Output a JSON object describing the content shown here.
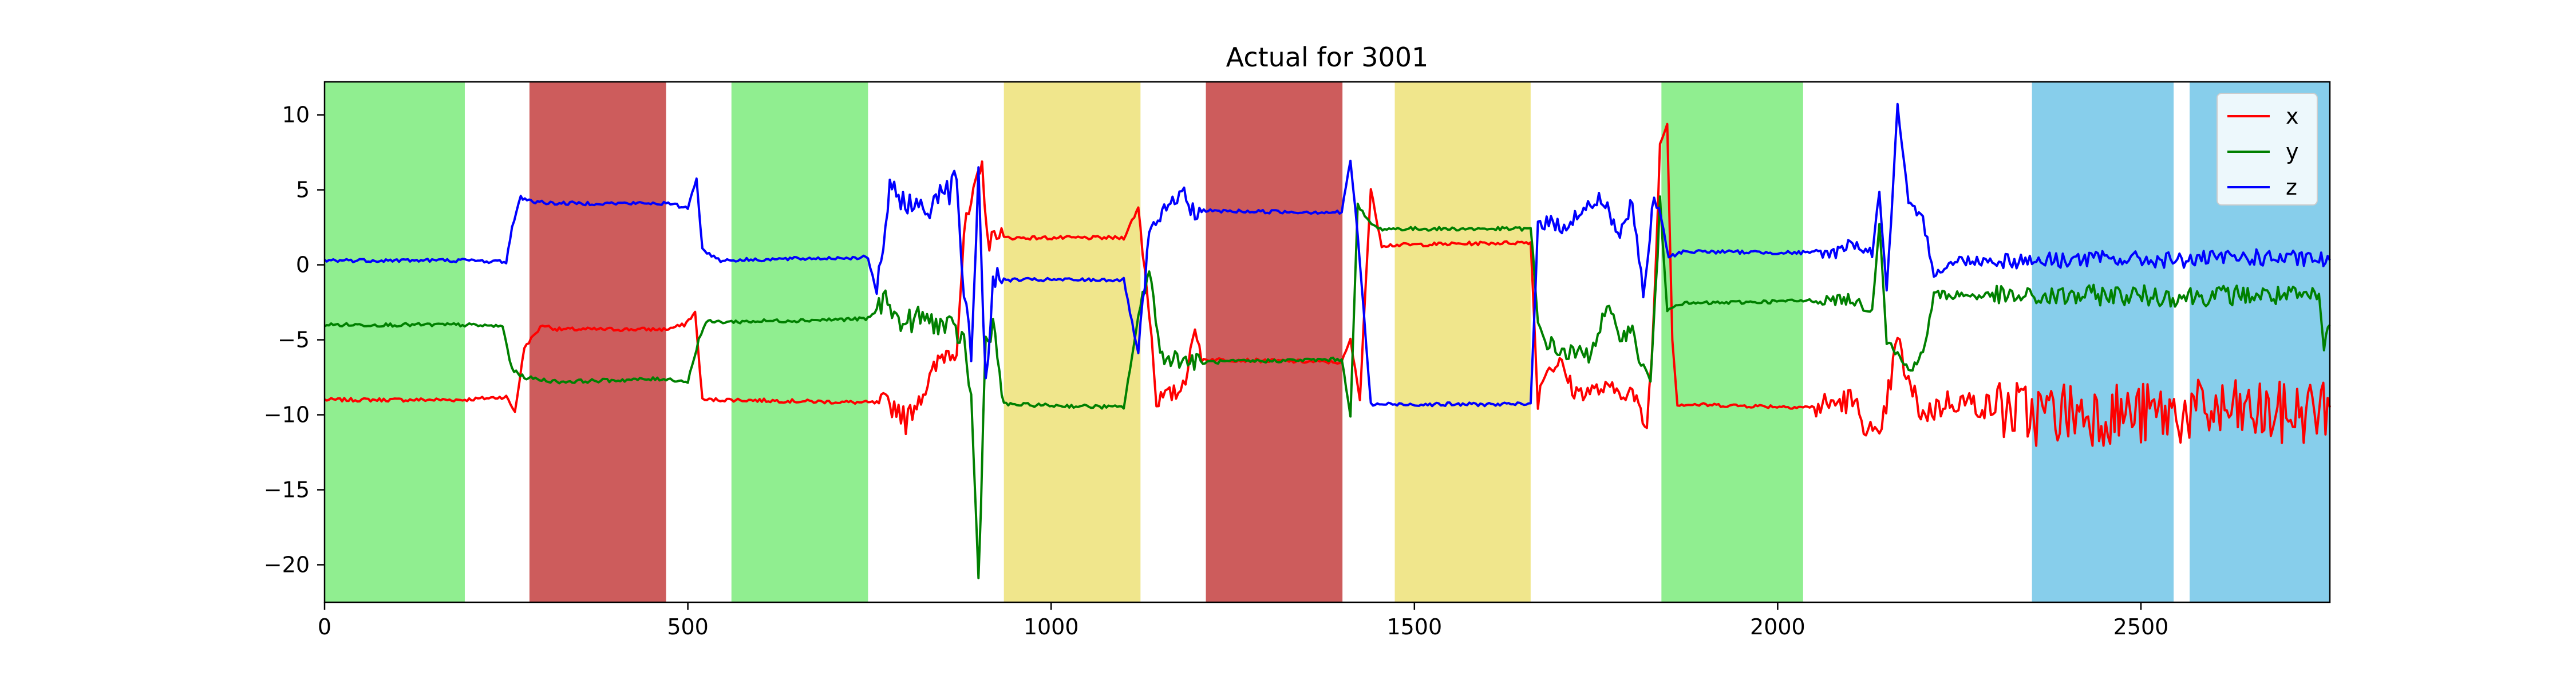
{
  "chart_data": {
    "type": "line",
    "title": "Actual for 3001",
    "xlabel": "",
    "ylabel": "",
    "xlim": [
      0,
      2760
    ],
    "ylim": [
      -22.5,
      12.2
    ],
    "xticks": [
      0,
      500,
      1000,
      1500,
      2000,
      2500
    ],
    "yticks": [
      10,
      5,
      0,
      -5,
      -10,
      -15,
      -20
    ],
    "grid": false,
    "legend": {
      "placement": "top-right",
      "entries": [
        "x",
        "y",
        "z"
      ]
    },
    "colors": {
      "x": "#ff0000",
      "y": "#008000",
      "z": "#0000ff"
    },
    "bands": [
      {
        "x0": 0,
        "x1": 193,
        "color": "#90ee90"
      },
      {
        "x0": 282,
        "x1": 470,
        "color": "#cd5c5c"
      },
      {
        "x0": 560,
        "x1": 748,
        "color": "#90ee90"
      },
      {
        "x0": 935,
        "x1": 1123,
        "color": "#f0e68c"
      },
      {
        "x0": 1213,
        "x1": 1401,
        "color": "#cd5c5c"
      },
      {
        "x0": 1473,
        "x1": 1660,
        "color": "#f0e68c"
      },
      {
        "x0": 1840,
        "x1": 2035,
        "color": "#90ee90"
      },
      {
        "x0": 2350,
        "x1": 2545,
        "color": "#87ceeb"
      },
      {
        "x0": 2567,
        "x1": 2760,
        "color": "#87ceeb"
      }
    ],
    "series": [
      {
        "name": "x",
        "points": [
          [
            0,
            -9
          ],
          [
            190,
            -9
          ],
          [
            250,
            -8.8
          ],
          [
            262,
            -9.8
          ],
          [
            275,
            -5.5
          ],
          [
            300,
            -4
          ],
          [
            320,
            -4.3
          ],
          [
            470,
            -4.3
          ],
          [
            495,
            -4
          ],
          [
            510,
            -3.2
          ],
          [
            520,
            -9
          ],
          [
            560,
            -9
          ],
          [
            760,
            -9.2
          ],
          [
            790,
            -9.5
          ],
          [
            800,
            -10.5
          ],
          [
            815,
            -9
          ],
          [
            830,
            -8
          ],
          [
            850,
            -6
          ],
          [
            870,
            -5.5
          ],
          [
            880,
            2
          ],
          [
            890,
            4
          ],
          [
            905,
            6.5
          ],
          [
            915,
            1
          ],
          [
            925,
            2.5
          ],
          [
            935,
            1.8
          ],
          [
            1100,
            1.8
          ],
          [
            1120,
            3.8
          ],
          [
            1135,
            -3
          ],
          [
            1145,
            -9
          ],
          [
            1175,
            -8.5
          ],
          [
            1185,
            -7.5
          ],
          [
            1195,
            -4.5
          ],
          [
            1210,
            -6.3
          ],
          [
            1400,
            -6.5
          ],
          [
            1412,
            -5
          ],
          [
            1425,
            -9
          ],
          [
            1430,
            -4
          ],
          [
            1440,
            5
          ],
          [
            1455,
            1.3
          ],
          [
            1660,
            1.5
          ],
          [
            1670,
            -9
          ],
          [
            1680,
            -7
          ],
          [
            1700,
            -6.5
          ],
          [
            1720,
            -8.5
          ],
          [
            1760,
            -8.3
          ],
          [
            1800,
            -8.5
          ],
          [
            1820,
            -11
          ],
          [
            1830,
            -3
          ],
          [
            1838,
            8
          ],
          [
            1848,
            9.5
          ],
          [
            1855,
            -5
          ],
          [
            1862,
            -9.3
          ],
          [
            2050,
            -9.5
          ],
          [
            2100,
            -9
          ],
          [
            2140,
            -12
          ],
          [
            2165,
            -5
          ],
          [
            2180,
            -8
          ],
          [
            2200,
            -10
          ],
          [
            2240,
            -9
          ],
          [
            2350,
            -10
          ],
          [
            2400,
            -9.8
          ],
          [
            2500,
            -10
          ],
          [
            2600,
            -9.8
          ],
          [
            2700,
            -10
          ],
          [
            2760,
            -9.5
          ]
        ]
      },
      {
        "name": "y",
        "points": [
          [
            0,
            -4
          ],
          [
            190,
            -4
          ],
          [
            245,
            -4.1
          ],
          [
            258,
            -7
          ],
          [
            275,
            -7.5
          ],
          [
            320,
            -7.8
          ],
          [
            470,
            -7.6
          ],
          [
            500,
            -7.8
          ],
          [
            515,
            -5
          ],
          [
            525,
            -3.8
          ],
          [
            560,
            -3.8
          ],
          [
            748,
            -3.6
          ],
          [
            760,
            -3
          ],
          [
            775,
            -2
          ],
          [
            790,
            -4
          ],
          [
            820,
            -3.5
          ],
          [
            860,
            -4.2
          ],
          [
            880,
            -5
          ],
          [
            890,
            -9
          ],
          [
            900,
            -21
          ],
          [
            910,
            -5
          ],
          [
            920,
            -4
          ],
          [
            935,
            -9.3
          ],
          [
            1100,
            -9.5
          ],
          [
            1120,
            -3.5
          ],
          [
            1135,
            0
          ],
          [
            1150,
            -6
          ],
          [
            1200,
            -6.5
          ],
          [
            1400,
            -6.3
          ],
          [
            1412,
            -10
          ],
          [
            1422,
            4
          ],
          [
            1435,
            3
          ],
          [
            1450,
            2.4
          ],
          [
            1660,
            2.4
          ],
          [
            1670,
            -4
          ],
          [
            1680,
            -5
          ],
          [
            1700,
            -5.8
          ],
          [
            1740,
            -6
          ],
          [
            1765,
            -3
          ],
          [
            1780,
            -4.5
          ],
          [
            1800,
            -4.5
          ],
          [
            1812,
            -6.5
          ],
          [
            1825,
            -8
          ],
          [
            1838,
            4
          ],
          [
            1848,
            -3
          ],
          [
            1860,
            -2.6
          ],
          [
            2035,
            -2.4
          ],
          [
            2100,
            -2.3
          ],
          [
            2130,
            -3
          ],
          [
            2140,
            3
          ],
          [
            2150,
            -5
          ],
          [
            2180,
            -7
          ],
          [
            2200,
            -6
          ],
          [
            2215,
            -2
          ],
          [
            2250,
            -2
          ],
          [
            2350,
            -2.2
          ],
          [
            2450,
            -2
          ],
          [
            2550,
            -2.1
          ],
          [
            2650,
            -2
          ],
          [
            2745,
            -2.2
          ],
          [
            2752,
            -5.5
          ],
          [
            2760,
            -4
          ]
        ]
      },
      {
        "name": "z",
        "points": [
          [
            0,
            0.3
          ],
          [
            190,
            0.3
          ],
          [
            250,
            0.2
          ],
          [
            258,
            2.5
          ],
          [
            270,
            4.5
          ],
          [
            290,
            4.2
          ],
          [
            320,
            4.1
          ],
          [
            470,
            4.1
          ],
          [
            500,
            3.8
          ],
          [
            512,
            5.8
          ],
          [
            520,
            1
          ],
          [
            545,
            0.3
          ],
          [
            748,
            0.5
          ],
          [
            760,
            -2
          ],
          [
            778,
            5
          ],
          [
            790,
            4.5
          ],
          [
            830,
            3.5
          ],
          [
            850,
            5.5
          ],
          [
            860,
            4.8
          ],
          [
            870,
            6
          ],
          [
            880,
            -2
          ],
          [
            890,
            -6
          ],
          [
            900,
            6
          ],
          [
            910,
            -8
          ],
          [
            920,
            -1
          ],
          [
            935,
            -1
          ],
          [
            1100,
            -1
          ],
          [
            1120,
            -6
          ],
          [
            1135,
            2
          ],
          [
            1150,
            3
          ],
          [
            1170,
            4.5
          ],
          [
            1180,
            4.8
          ],
          [
            1195,
            3.6
          ],
          [
            1400,
            3.5
          ],
          [
            1412,
            7
          ],
          [
            1422,
            2
          ],
          [
            1430,
            -3
          ],
          [
            1440,
            -9.3
          ],
          [
            1660,
            -9.3
          ],
          [
            1670,
            3
          ],
          [
            1700,
            2.5
          ],
          [
            1760,
            4.5
          ],
          [
            1780,
            2
          ],
          [
            1800,
            4
          ],
          [
            1815,
            -2
          ],
          [
            1830,
            4.5
          ],
          [
            1840,
            3
          ],
          [
            1850,
            0.5
          ],
          [
            1870,
            0.9
          ],
          [
            2035,
            0.8
          ],
          [
            2080,
            0.8
          ],
          [
            2100,
            1.5
          ],
          [
            2130,
            0.8
          ],
          [
            2140,
            5
          ],
          [
            2150,
            -2
          ],
          [
            2165,
            10.5
          ],
          [
            2180,
            4
          ],
          [
            2200,
            3
          ],
          [
            2215,
            -0.5
          ],
          [
            2250,
            0.3
          ],
          [
            2350,
            0.3
          ],
          [
            2450,
            0.4
          ],
          [
            2550,
            0.3
          ],
          [
            2650,
            0.5
          ],
          [
            2760,
            0.3
          ]
        ]
      }
    ]
  }
}
